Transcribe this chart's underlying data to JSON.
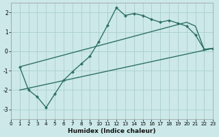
{
  "xlabel": "Humidex (Indice chaleur)",
  "bg_color": "#cce8e8",
  "grid_color": "#aacece",
  "line_color": "#2d7068",
  "xlim": [
    0,
    23
  ],
  "ylim": [
    -3.5,
    2.5
  ],
  "yticks": [
    -3,
    -2,
    -1,
    0,
    1,
    2
  ],
  "xticks": [
    0,
    1,
    2,
    3,
    4,
    5,
    6,
    7,
    8,
    9,
    10,
    11,
    12,
    13,
    14,
    15,
    16,
    17,
    18,
    19,
    20,
    21,
    22,
    23
  ],
  "main_x": [
    1,
    2,
    3,
    4,
    5,
    6,
    7,
    8,
    9,
    10,
    11,
    12,
    13,
    14,
    15,
    16,
    17,
    18,
    19,
    20,
    21,
    22,
    23
  ],
  "main_y": [
    -0.8,
    -2.0,
    -2.35,
    -2.9,
    -2.2,
    -1.5,
    -1.05,
    -0.65,
    -0.25,
    0.5,
    1.35,
    2.25,
    1.85,
    1.95,
    1.85,
    1.65,
    1.5,
    1.6,
    1.45,
    1.3,
    0.85,
    0.1,
    0.15
  ],
  "line2_x": [
    1,
    20,
    21,
    22,
    23
  ],
  "line2_y": [
    -0.8,
    1.5,
    1.3,
    0.1,
    0.15
  ],
  "line3_x": [
    1,
    23
  ],
  "line3_y": [
    -2.0,
    0.15
  ]
}
